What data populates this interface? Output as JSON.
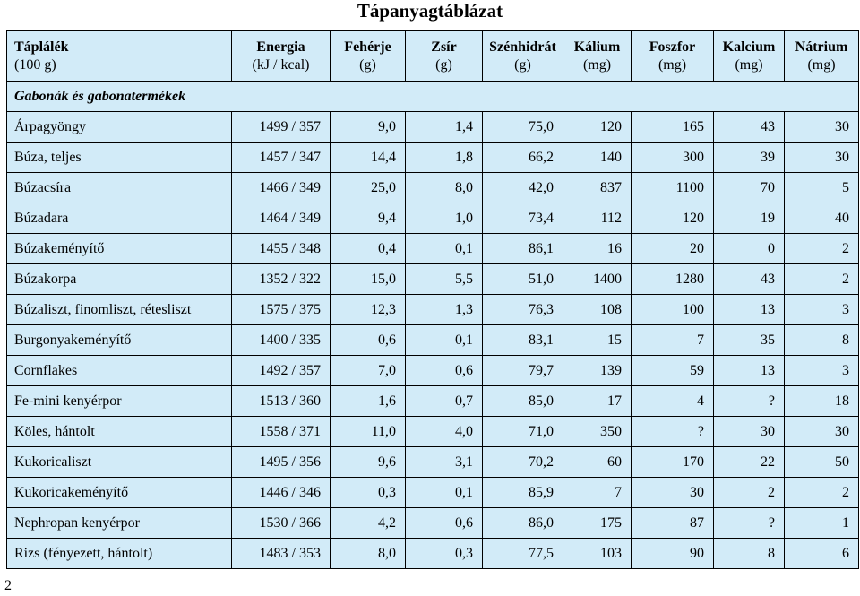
{
  "title": "Tápanyagtáblázat",
  "page_number": "2",
  "headers": [
    {
      "label": "Táplálék",
      "unit": "(100 g)"
    },
    {
      "label": "Energia",
      "unit": "(kJ / kcal)"
    },
    {
      "label": "Fehérje",
      "unit": "(g)"
    },
    {
      "label": "Zsír",
      "unit": "(g)"
    },
    {
      "label": "Szénhidrát",
      "unit": "(g)"
    },
    {
      "label": "Kálium",
      "unit": "(mg)"
    },
    {
      "label": "Foszfor",
      "unit": "(mg)"
    },
    {
      "label": "Kalcium",
      "unit": "(mg)"
    },
    {
      "label": "Nátrium",
      "unit": "(mg)"
    }
  ],
  "section": "Gabonák és gabonatermékek",
  "rows": [
    [
      "Árpagyöngy",
      "1499 / 357",
      "9,0",
      "1,4",
      "75,0",
      "120",
      "165",
      "43",
      "30"
    ],
    [
      "Búza, teljes",
      "1457 / 347",
      "14,4",
      "1,8",
      "66,2",
      "140",
      "300",
      "39",
      "30"
    ],
    [
      "Búzacsíra",
      "1466 / 349",
      "25,0",
      "8,0",
      "42,0",
      "837",
      "1100",
      "70",
      "5"
    ],
    [
      "Búzadara",
      "1464 / 349",
      "9,4",
      "1,0",
      "73,4",
      "112",
      "120",
      "19",
      "40"
    ],
    [
      "Búzakeményítő",
      "1455 / 348",
      "0,4",
      "0,1",
      "86,1",
      "16",
      "20",
      "0",
      "2"
    ],
    [
      "Búzakorpa",
      "1352 / 322",
      "15,0",
      "5,5",
      "51,0",
      "1400",
      "1280",
      "43",
      "2"
    ],
    [
      "Búzaliszt, finomliszt, rétesliszt",
      "1575 / 375",
      "12,3",
      "1,3",
      "76,3",
      "108",
      "100",
      "13",
      "3"
    ],
    [
      "Burgonyakeményítő",
      "1400 / 335",
      "0,6",
      "0,1",
      "83,1",
      "15",
      "7",
      "35",
      "8"
    ],
    [
      "Cornflakes",
      "1492 / 357",
      "7,0",
      "0,6",
      "79,7",
      "139",
      "59",
      "13",
      "3"
    ],
    [
      "Fe-mini kenyérpor",
      "1513 / 360",
      "1,6",
      "0,7",
      "85,0",
      "17",
      "4",
      "?",
      "18"
    ],
    [
      "Köles, hántolt",
      "1558 / 371",
      "11,0",
      "4,0",
      "71,0",
      "350",
      "?",
      "30",
      "30"
    ],
    [
      "Kukoricaliszt",
      "1495 / 356",
      "9,6",
      "3,1",
      "70,2",
      "60",
      "170",
      "22",
      "50"
    ],
    [
      "Kukoricakeményítő",
      "1446 / 346",
      "0,3",
      "0,1",
      "85,9",
      "7",
      "30",
      "2",
      "2"
    ],
    [
      "Nephropan kenyérpor",
      "1530 / 366",
      "4,2",
      "0,6",
      "86,0",
      "175",
      "87",
      "?",
      "1"
    ],
    [
      "Rizs (fényezett, hántolt)",
      "1483 / 353",
      "8,0",
      "0,3",
      "77,5",
      "103",
      "90",
      "8",
      "6"
    ]
  ]
}
